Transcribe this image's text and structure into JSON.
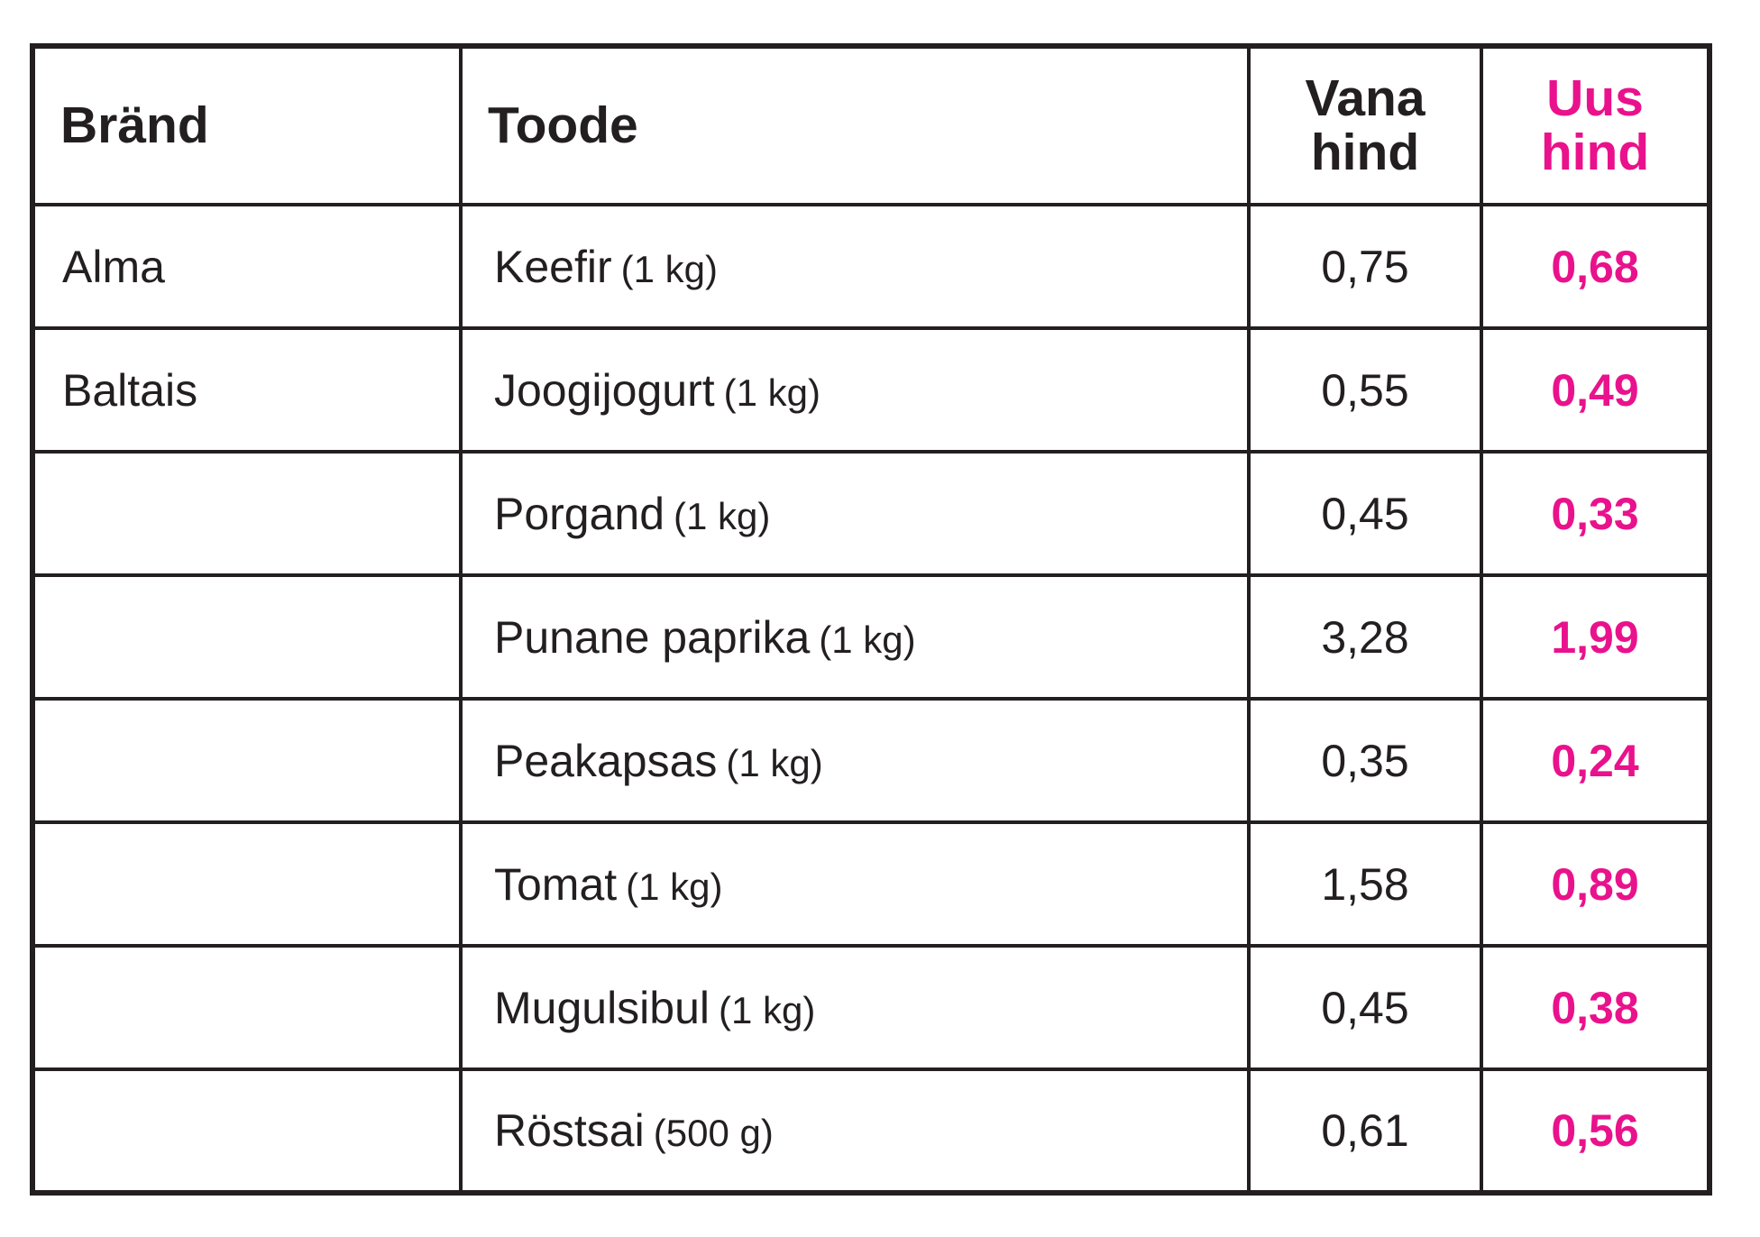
{
  "colors": {
    "accent_pink": "#E9128C",
    "text_black": "#231F20",
    "border": "#231F20",
    "background": "#FFFFFF"
  },
  "table": {
    "headers": {
      "brand": "Bränd",
      "product": "Toode",
      "old_price": "Vana hind",
      "new_price": "Uus hind"
    },
    "rows": [
      {
        "brand": "Alma",
        "product": "Keefir",
        "qty": "(1 kg)",
        "old_price": "0,75",
        "new_price": "0,68"
      },
      {
        "brand": "Baltais",
        "product": "Joogijogurt",
        "qty": "(1 kg)",
        "old_price": "0,55",
        "new_price": "0,49"
      },
      {
        "brand": "",
        "product": "Porgand",
        "qty": "(1 kg)",
        "old_price": "0,45",
        "new_price": "0,33"
      },
      {
        "brand": "",
        "product": "Punane paprika",
        "qty": "(1 kg)",
        "old_price": "3,28",
        "new_price": "1,99"
      },
      {
        "brand": "",
        "product": "Peakapsas",
        "qty": "(1 kg)",
        "old_price": "0,35",
        "new_price": "0,24"
      },
      {
        "brand": "",
        "product": "Tomat",
        "qty": "(1 kg)",
        "old_price": "1,58",
        "new_price": "0,89"
      },
      {
        "brand": "",
        "product": "Mugulsibul",
        "qty": "(1 kg)",
        "old_price": "0,45",
        "new_price": "0,38"
      },
      {
        "brand": "",
        "product": "Röstsai",
        "qty": "(500 g)",
        "old_price": "0,61",
        "new_price": "0,56"
      }
    ]
  }
}
